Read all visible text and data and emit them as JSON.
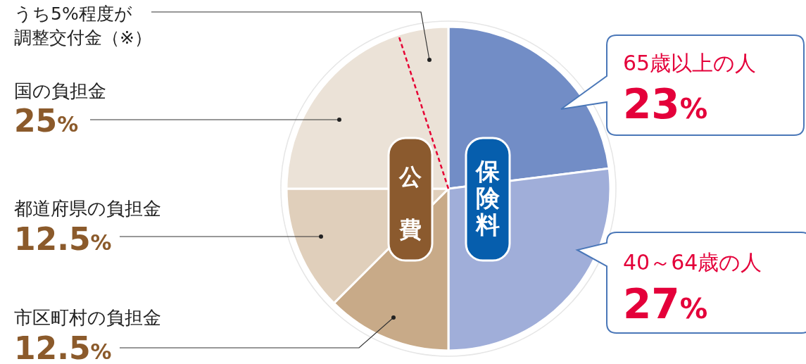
{
  "chart_data": {
    "type": "pie",
    "categories": [
      "65歳以上の人",
      "40～64歳の人",
      "市区町村の負担金",
      "都道府県の負担金",
      "国の負担金"
    ],
    "values": [
      23,
      27,
      12.5,
      12.5,
      25
    ],
    "colors": [
      "#728dc6",
      "#a0aed9",
      "#c8aa88",
      "#e0cfbb",
      "#ebe2d7"
    ],
    "value_labels": [
      "23%",
      "27%",
      "12.5%",
      "12.5%",
      "25%"
    ],
    "annotations": [
      "うち5%程度が調整交付金（※）",
      "公費",
      "保険料"
    ],
    "needle": "国の負担金"
  }
}
